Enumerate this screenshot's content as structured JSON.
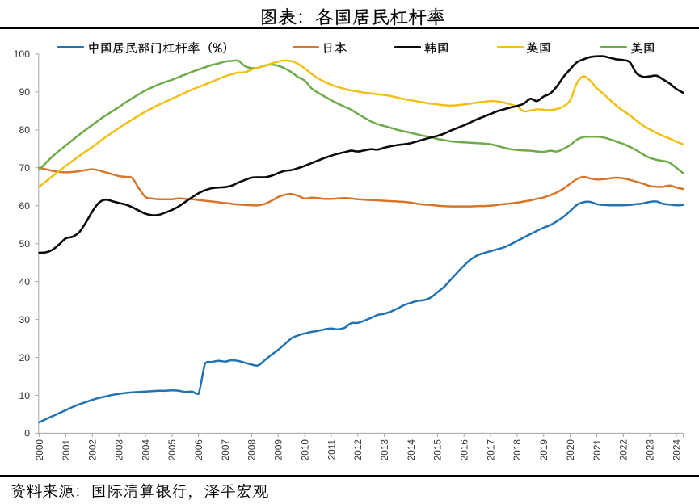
{
  "title": "图表：各国居民杠杆率",
  "source_note": "资料来源：国际清算银行，泽平宏观",
  "chart_data": {
    "type": "line",
    "title": "图表：各国居民杠杆率",
    "x_start": 2000.0,
    "x_step": 0.25,
    "x_tick_labels": [
      "2000",
      "2001",
      "2002",
      "2003",
      "2004",
      "2005",
      "2006",
      "2007",
      "2008",
      "2009",
      "2010",
      "2011",
      "2012",
      "2013",
      "2014",
      "2015",
      "2016",
      "2017",
      "2018",
      "2019",
      "2020",
      "2021",
      "2022",
      "2023",
      "2024"
    ],
    "y_ticks": [
      0,
      10,
      20,
      30,
      40,
      50,
      60,
      70,
      80,
      90,
      100
    ],
    "ylim": [
      0,
      100
    ],
    "grid": false,
    "legend_position": "top",
    "series": [
      {
        "name": "中国居民部门杠杆率（%）",
        "color": "#2173b4",
        "values": [
          2.9,
          3.7,
          4.5,
          5.3,
          6.1,
          6.9,
          7.6,
          8.2,
          8.8,
          9.3,
          9.7,
          10.1,
          10.4,
          10.6,
          10.8,
          10.9,
          11.0,
          11.1,
          11.2,
          11.2,
          11.3,
          11.2,
          10.9,
          11.0,
          10.4,
          18.4,
          18.8,
          19.1,
          18.9,
          19.25,
          19.05,
          18.6,
          18.1,
          17.9,
          19.3,
          20.7,
          22.0,
          23.5,
          25.0,
          25.8,
          26.3,
          26.7,
          27.0,
          27.4,
          27.6,
          27.4,
          27.8,
          29.0,
          29.1,
          29.7,
          30.4,
          31.2,
          31.5,
          32.1,
          32.9,
          33.8,
          34.4,
          34.9,
          35.1,
          35.8,
          37.2,
          38.6,
          40.5,
          42.4,
          44.2,
          45.8,
          46.9,
          47.5,
          48.0,
          48.5,
          49.0,
          49.8,
          50.7,
          51.6,
          52.5,
          53.4,
          54.2,
          54.9,
          55.9,
          57.1,
          58.6,
          60.2,
          60.9,
          61.0,
          60.4,
          60.2,
          60.1,
          60.1,
          60.1,
          60.2,
          60.4,
          60.6,
          61.0,
          61.1,
          60.5,
          60.3,
          60.1,
          60.2
        ]
      },
      {
        "name": "日本",
        "color": "#d9752b",
        "values": [
          70.0,
          69.6,
          69.2,
          68.9,
          68.8,
          68.9,
          69.1,
          69.4,
          69.6,
          69.3,
          68.8,
          68.3,
          67.8,
          67.6,
          67.3,
          64.6,
          62.3,
          61.9,
          61.7,
          61.7,
          61.7,
          61.9,
          61.8,
          61.7,
          61.5,
          61.3,
          61.1,
          60.9,
          60.7,
          60.5,
          60.3,
          60.2,
          60.1,
          60.1,
          60.5,
          61.3,
          62.3,
          62.9,
          63.1,
          62.6,
          61.9,
          62.1,
          62.0,
          61.8,
          61.8,
          61.9,
          62.0,
          61.9,
          61.7,
          61.6,
          61.5,
          61.4,
          61.3,
          61.2,
          61.1,
          61.0,
          60.8,
          60.5,
          60.3,
          60.2,
          60.0,
          59.9,
          59.8,
          59.8,
          59.8,
          59.8,
          59.9,
          59.9,
          60.0,
          60.2,
          60.4,
          60.6,
          60.8,
          61.1,
          61.4,
          61.8,
          62.2,
          62.8,
          63.5,
          64.5,
          65.8,
          67.0,
          67.6,
          67.2,
          66.9,
          67.0,
          67.2,
          67.4,
          67.2,
          66.8,
          66.3,
          65.8,
          65.2,
          65.0,
          65.0,
          65.3,
          64.8,
          64.4
        ]
      },
      {
        "name": "韩国",
        "color": "#0a0a0a",
        "values": [
          47.6,
          47.7,
          48.4,
          49.8,
          51.4,
          51.8,
          53.0,
          55.5,
          58.5,
          60.8,
          61.6,
          61.2,
          60.7,
          60.3,
          59.6,
          58.7,
          57.9,
          57.5,
          57.6,
          58.2,
          58.9,
          59.8,
          61.0,
          62.2,
          63.3,
          64.1,
          64.6,
          64.8,
          64.9,
          65.3,
          66.1,
          66.8,
          67.4,
          67.5,
          67.5,
          67.9,
          68.6,
          69.2,
          69.4,
          69.9,
          70.5,
          71.2,
          71.9,
          72.6,
          73.2,
          73.7,
          74.1,
          74.5,
          74.3,
          74.6,
          74.9,
          74.8,
          75.3,
          75.7,
          76.0,
          76.2,
          76.5,
          77.0,
          77.5,
          78.0,
          78.4,
          79.0,
          79.8,
          80.5,
          81.2,
          82.0,
          82.8,
          83.5,
          84.2,
          84.9,
          85.4,
          85.9,
          86.3,
          86.9,
          88.2,
          87.6,
          88.8,
          89.6,
          91.5,
          94.0,
          96.0,
          97.8,
          98.6,
          99.2,
          99.4,
          99.4,
          99.0,
          98.6,
          98.4,
          97.8,
          94.9,
          94.0,
          94.1,
          94.3,
          93.3,
          92.2,
          90.8,
          89.8
        ]
      },
      {
        "name": "英国",
        "color": "#f2c014",
        "values": [
          65.0,
          66.4,
          67.8,
          69.2,
          70.5,
          71.8,
          73.1,
          74.3,
          75.5,
          76.8,
          78.1,
          79.3,
          80.5,
          81.6,
          82.7,
          83.8,
          84.8,
          85.7,
          86.6,
          87.4,
          88.2,
          89.0,
          89.8,
          90.6,
          91.3,
          92.0,
          92.7,
          93.4,
          94.1,
          94.7,
          95.1,
          95.2,
          95.9,
          96.4,
          96.9,
          97.5,
          98.0,
          98.3,
          98.1,
          97.4,
          96.2,
          94.8,
          93.6,
          92.7,
          91.9,
          91.3,
          90.8,
          90.4,
          90.1,
          89.8,
          89.6,
          89.4,
          89.2,
          88.9,
          88.5,
          88.1,
          87.8,
          87.5,
          87.2,
          86.9,
          86.7,
          86.5,
          86.4,
          86.5,
          86.7,
          86.9,
          87.2,
          87.4,
          87.6,
          87.5,
          87.2,
          86.7,
          86.2,
          84.9,
          85.1,
          85.4,
          85.3,
          85.2,
          85.5,
          86.2,
          87.8,
          92.3,
          94.1,
          93.0,
          91.0,
          89.5,
          87.9,
          86.3,
          85.0,
          83.8,
          82.4,
          81.1,
          80.1,
          79.2,
          78.4,
          77.7,
          76.9,
          76.2
        ]
      },
      {
        "name": "美国",
        "color": "#6fac49",
        "values": [
          69.5,
          71.3,
          73.0,
          74.5,
          75.9,
          77.3,
          78.7,
          80.0,
          81.3,
          82.6,
          83.8,
          84.9,
          86.0,
          87.2,
          88.3,
          89.4,
          90.4,
          91.2,
          92.0,
          92.6,
          93.2,
          93.9,
          94.6,
          95.3,
          95.9,
          96.5,
          97.1,
          97.5,
          98.0,
          98.2,
          98.2,
          96.8,
          96.3,
          96.4,
          97.0,
          97.2,
          96.9,
          96.2,
          95.2,
          93.9,
          93.0,
          91.0,
          89.8,
          88.8,
          87.8,
          86.9,
          86.1,
          85.3,
          84.2,
          83.2,
          82.2,
          81.5,
          81.0,
          80.5,
          80.0,
          79.6,
          79.2,
          78.8,
          78.4,
          78.1,
          77.6,
          77.3,
          77.0,
          76.8,
          76.7,
          76.6,
          76.5,
          76.4,
          76.2,
          75.8,
          75.3,
          74.9,
          74.7,
          74.6,
          74.5,
          74.3,
          74.2,
          74.5,
          74.3,
          75.0,
          76.0,
          77.4,
          78.1,
          78.2,
          78.2,
          78.0,
          77.5,
          76.9,
          76.3,
          75.5,
          74.6,
          73.5,
          72.6,
          72.1,
          71.8,
          71.3,
          70.0,
          68.6
        ]
      }
    ]
  }
}
